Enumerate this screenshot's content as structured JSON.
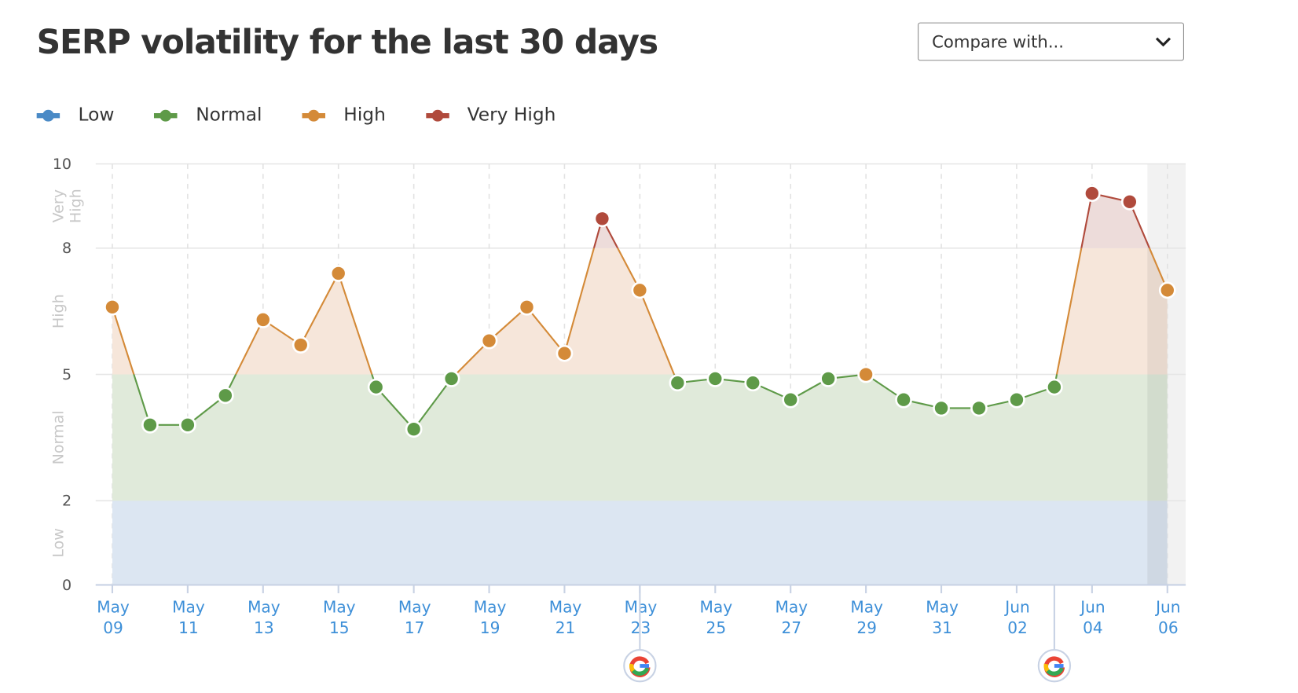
{
  "header": {
    "title": "SERP volatility for the last 30 days",
    "compare_label": "Compare with...",
    "compare_icon": "chevron-down-icon"
  },
  "chart_data": {
    "type": "line",
    "title": "SERP volatility for the last 30 days",
    "x": [
      "May 09",
      "May 10",
      "May 11",
      "May 12",
      "May 13",
      "May 14",
      "May 15",
      "May 16",
      "May 17",
      "May 18",
      "May 19",
      "May 20",
      "May 21",
      "May 22",
      "May 23",
      "May 24",
      "May 25",
      "May 26",
      "May 27",
      "May 28",
      "May 29",
      "May 30",
      "May 31",
      "Jun 01",
      "Jun 02",
      "Jun 03",
      "Jun 04",
      "Jun 05",
      "Jun 06"
    ],
    "values": [
      6.6,
      3.8,
      3.8,
      4.5,
      6.3,
      5.7,
      7.4,
      4.7,
      3.7,
      4.9,
      5.8,
      6.6,
      5.5,
      8.7,
      7.0,
      4.8,
      4.9,
      4.8,
      4.4,
      4.9,
      5.0,
      4.4,
      4.2,
      4.2,
      4.4,
      4.7,
      9.3,
      9.1,
      7.0
    ],
    "ylim": [
      0,
      10
    ],
    "yticks": [
      "0",
      "2",
      "5",
      "8",
      "10"
    ],
    "xticks": [
      [
        "May",
        "09"
      ],
      [
        "May",
        "11"
      ],
      [
        "May",
        "13"
      ],
      [
        "May",
        "15"
      ],
      [
        "May",
        "17"
      ],
      [
        "May",
        "19"
      ],
      [
        "May",
        "21"
      ],
      [
        "May",
        "23"
      ],
      [
        "May",
        "25"
      ],
      [
        "May",
        "27"
      ],
      [
        "May",
        "29"
      ],
      [
        "May",
        "31"
      ],
      [
        "Jun",
        "02"
      ],
      [
        "Jun",
        "04"
      ],
      [
        "Jun",
        "06"
      ]
    ],
    "bands": [
      {
        "name": "Low",
        "from": 0,
        "to": 2,
        "color": "#4a8ac6",
        "fill": "#dce6f2"
      },
      {
        "name": "Normal",
        "from": 2,
        "to": 5,
        "color": "#5e9a48",
        "fill": "#e0eada"
      },
      {
        "name": "High",
        "from": 5,
        "to": 8,
        "color": "#d48a38",
        "fill": "#f6e6da"
      },
      {
        "name": "Very High",
        "from": 8,
        "to": 10,
        "color": "#b04a3c",
        "fill": "#eddcda"
      }
    ],
    "band_axis_labels": [
      "Low",
      "Normal",
      "High",
      "Very High"
    ],
    "google_update_markers": [
      "May 23",
      "Jun 03"
    ],
    "highlighted_day": "Jun 06",
    "grid": true,
    "legend_placement": "top-left"
  }
}
